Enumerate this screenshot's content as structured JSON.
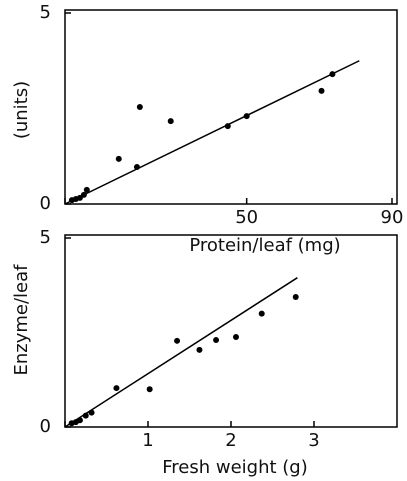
{
  "chart_data": [
    {
      "type": "scatter",
      "x_label": "Protein/leaf (mg)",
      "y_label": "(units)",
      "xlim": [
        0,
        90
      ],
      "ylim": [
        0,
        5
      ],
      "xticks": [
        0,
        50,
        90
      ],
      "yticks": [
        0,
        5
      ],
      "color": "#000000",
      "points": {
        "x": [
          1.9,
          3.0,
          4.1,
          5.2,
          6.0,
          14.8,
          19.8,
          20.6,
          29.1,
          44.8,
          50.0,
          70.6,
          73.6
        ],
        "y": [
          0.1,
          0.13,
          0.16,
          0.24,
          0.37,
          1.18,
          0.97,
          2.54,
          2.17,
          2.04,
          2.3,
          2.96,
          3.4
        ]
      },
      "fit": {
        "x": [
          0,
          81
        ],
        "y": [
          0,
          3.75
        ]
      }
    },
    {
      "type": "scatter",
      "x_label": "Fresh weight (g)",
      "y_label": "Enzyme/leaf",
      "xlim": [
        0,
        4
      ],
      "ylim": [
        0,
        5
      ],
      "xticks": [
        0,
        1,
        2,
        3
      ],
      "yticks": [
        0,
        5
      ],
      "color": "#000000",
      "points": {
        "x": [
          0.08,
          0.13,
          0.18,
          0.25,
          0.32,
          0.62,
          1.02,
          1.35,
          1.62,
          1.82,
          2.06,
          2.37,
          2.78
        ],
        "y": [
          0.1,
          0.13,
          0.18,
          0.3,
          0.38,
          1.03,
          1.0,
          2.28,
          2.04,
          2.3,
          2.38,
          3.0,
          3.44
        ]
      },
      "fit": {
        "x": [
          0,
          2.8
        ],
        "y": [
          0,
          3.95
        ]
      }
    }
  ]
}
